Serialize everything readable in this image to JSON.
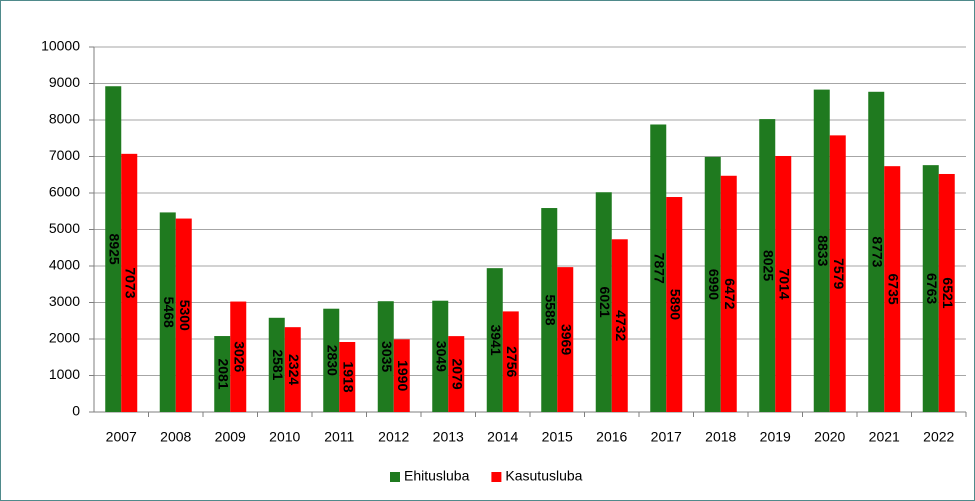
{
  "chart_data": {
    "type": "bar",
    "categories": [
      "2007",
      "2008",
      "2009",
      "2010",
      "2011",
      "2012",
      "2013",
      "2014",
      "2015",
      "2016",
      "2017",
      "2018",
      "2019",
      "2020",
      "2021",
      "2022"
    ],
    "series": [
      {
        "name": "Ehitusluba",
        "color": "#1f7a1f",
        "values": [
          8925,
          5468,
          2081,
          2581,
          2830,
          3035,
          3049,
          3941,
          5588,
          6021,
          7877,
          6990,
          8025,
          8833,
          8773,
          6763
        ]
      },
      {
        "name": "Kasutusluba",
        "color": "#ff0000",
        "values": [
          7073,
          5300,
          3026,
          2324,
          1918,
          1990,
          2079,
          2756,
          3969,
          4732,
          5890,
          6472,
          7014,
          7579,
          6735,
          6521
        ]
      }
    ],
    "ylim": [
      0,
      10000
    ],
    "yticks": [
      0,
      1000,
      2000,
      3000,
      4000,
      5000,
      6000,
      7000,
      8000,
      9000,
      10000
    ],
    "grid": true,
    "legend": "bottom"
  }
}
